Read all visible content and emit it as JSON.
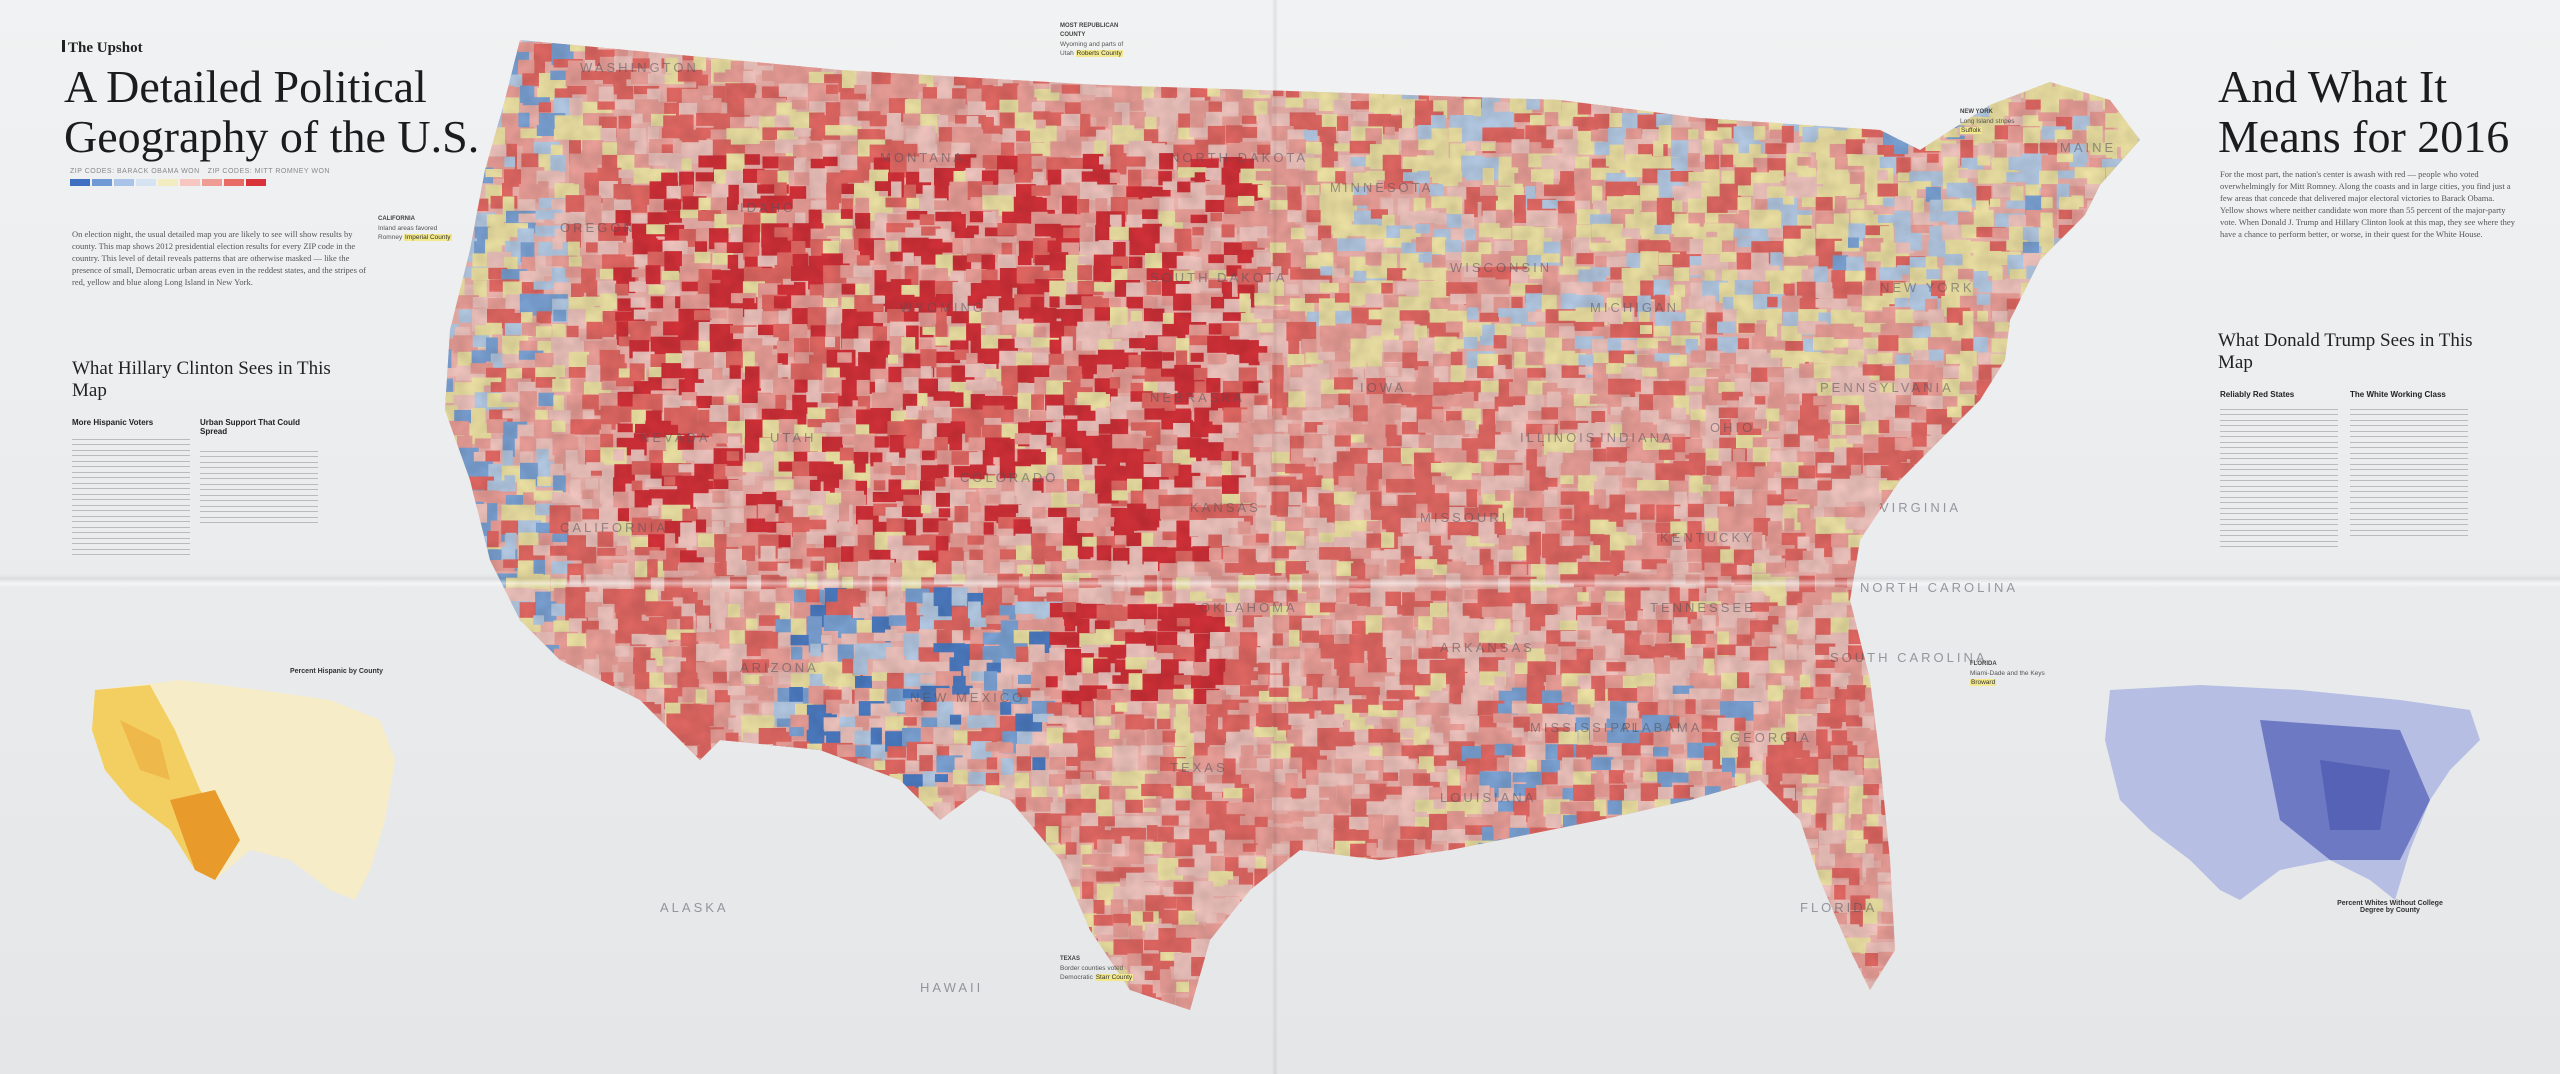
{
  "brand": "The Upshot",
  "headline_left": "A Detailed Political Geography of the U.S.",
  "headline_right": "And What It Means for 2016",
  "legend": {
    "left_label": "ZIP CODES: BARACK OBAMA WON",
    "right_label": "ZIP CODES: MITT ROMNEY WON",
    "colors": [
      "#3f6fc0",
      "#6f9ad6",
      "#a9c4e8",
      "#d6e3f2",
      "#f3ecc0",
      "#f7c6c0",
      "#ef9c95",
      "#e86b66",
      "#d9333a"
    ]
  },
  "intro_left": "On election night, the usual detailed map you are likely to see will show results by county. This map shows 2012 presidential election results for every ZIP code in the country. This level of detail reveals patterns that are otherwise masked — like the presence of small, Democratic urban areas even in the reddest states, and the stripes of red, yellow and blue along Long Island in New York.",
  "intro_right": "For the most part, the nation's center is awash with red — people who voted overwhelmingly for Mitt Romney. Along the coasts and in large cities, you find just a few areas that concede that delivered major electoral victories to Barack Obama. Yellow shows where neither candidate won more than 55 percent of the major-party vote. When Donald J. Trump and Hillary Clinton look at this map, they see where they have a chance to perform better, or worse, in their quest for the White House.",
  "left_section": {
    "title": "What Hillary Clinton Sees in This Map",
    "col1_heading": "More Hispanic Voters",
    "col2_heading": "Urban Support That Could Spread",
    "inset_caption": "Percent Hispanic by County"
  },
  "right_section": {
    "title": "What Donald Trump Sees in This Map",
    "col1_heading": "Reliably Red States",
    "col2_heading": "The White Working Class",
    "inset_caption": "Percent Whites Without College Degree by County"
  },
  "callouts": [
    {
      "head": "CALIFORNIA",
      "text": "Inland areas favored Romney",
      "hl": "Imperial County"
    },
    {
      "head": "MOST REPUBLICAN COUNTY",
      "text": "Wyoming and parts of Utah",
      "hl": "Roberts County"
    },
    {
      "head": "TEXAS",
      "text": "Border counties voted Democratic",
      "hl": "Starr County"
    },
    {
      "head": "FLORIDA",
      "text": "Miami-Dade and the Keys",
      "hl": "Broward"
    },
    {
      "head": "NEW YORK",
      "text": "Long Island stripes",
      "hl": "Suffolk"
    }
  ],
  "states": [
    "WASHINGTON",
    "OREGON",
    "CALIFORNIA",
    "NEVADA",
    "IDAHO",
    "MONTANA",
    "WYOMING",
    "UTAH",
    "COLORADO",
    "ARIZONA",
    "NEW MEXICO",
    "TEXAS",
    "NORTH DAKOTA",
    "SOUTH DAKOTA",
    "NEBRASKA",
    "KANSAS",
    "OKLAHOMA",
    "MINNESOTA",
    "IOWA",
    "MISSOURI",
    "WISCONSIN",
    "ILLINOIS",
    "MICHIGAN",
    "INDIANA",
    "OHIO",
    "KENTUCKY",
    "TENNESSEE",
    "ARKANSAS",
    "LOUISIANA",
    "MISSISSIPPI",
    "ALABAMA",
    "GEORGIA",
    "FLORIDA",
    "SOUTH CAROLINA",
    "NORTH CAROLINA",
    "VIRGINIA",
    "PENNSYLVANIA",
    "NEW YORK",
    "MAINE",
    "ALASKA",
    "HAWAII"
  ]
}
